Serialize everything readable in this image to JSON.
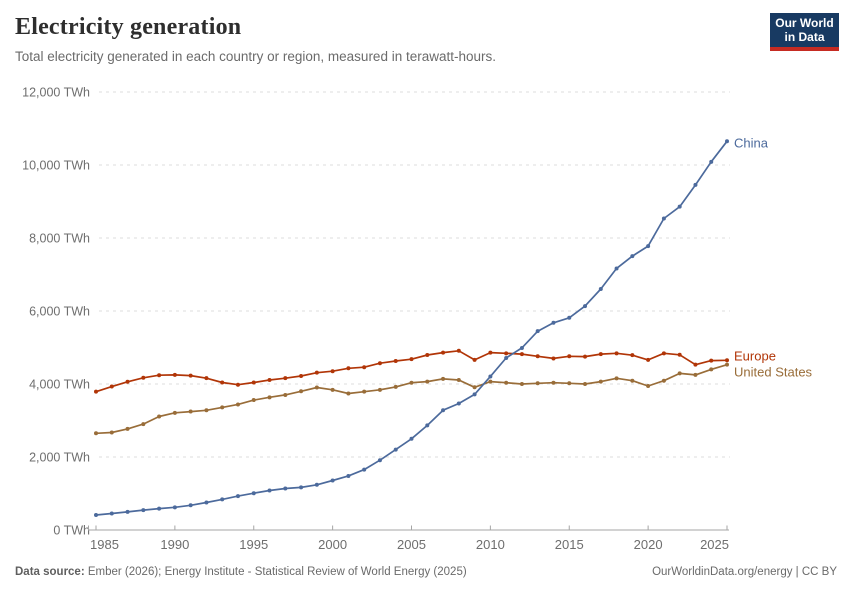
{
  "header": {
    "title": "Electricity generation",
    "subtitle": "Total electricity generated in each country or region, measured in terawatt-hours.",
    "logo": {
      "line1": "Our World",
      "line2": "in Data",
      "bg_color": "#183A62",
      "accent_color": "#C62B22"
    }
  },
  "chart_data": {
    "type": "line",
    "title": "Electricity generation",
    "subtitle": "Total electricity generated in each country or region, measured in terawatt-hours.",
    "unit": "TWh",
    "grid": "horizontal dashed",
    "legend_position": "line-end labels, right side",
    "xlim": [
      1985,
      2025
    ],
    "ylim": [
      0,
      12000
    ],
    "x": [
      1985,
      1986,
      1987,
      1988,
      1989,
      1990,
      1991,
      1992,
      1993,
      1994,
      1995,
      1996,
      1997,
      1998,
      1999,
      2000,
      2001,
      2002,
      2003,
      2004,
      2005,
      2006,
      2007,
      2008,
      2009,
      2010,
      2011,
      2012,
      2013,
      2014,
      2015,
      2016,
      2017,
      2018,
      2019,
      2020,
      2021,
      2022,
      2023,
      2024,
      2025
    ],
    "xticks": [
      {
        "value": 1985,
        "label": "1985"
      },
      {
        "value": 1990,
        "label": "1990"
      },
      {
        "value": 1995,
        "label": "1995"
      },
      {
        "value": 2000,
        "label": "2000"
      },
      {
        "value": 2005,
        "label": "2005"
      },
      {
        "value": 2010,
        "label": "2010"
      },
      {
        "value": 2015,
        "label": "2015"
      },
      {
        "value": 2020,
        "label": "2020"
      },
      {
        "value": 2025,
        "label": "2025"
      }
    ],
    "yticks": [
      {
        "value": 0,
        "label": "0 TWh"
      },
      {
        "value": 2000,
        "label": "2,000 TWh"
      },
      {
        "value": 4000,
        "label": "4,000 TWh"
      },
      {
        "value": 6000,
        "label": "6,000 TWh"
      },
      {
        "value": 8000,
        "label": "8,000 TWh"
      },
      {
        "value": 10000,
        "label": "10,000 TWh"
      },
      {
        "value": 12000,
        "label": "12,000 TWh"
      }
    ],
    "series": [
      {
        "name": "China",
        "color": "#4C6A9C",
        "label_dy": 2,
        "values": [
          411,
          451,
          497,
          545,
          585,
          621,
          678,
          754,
          839,
          928,
          1007,
          1081,
          1136,
          1167,
          1239,
          1356,
          1481,
          1654,
          1911,
          2203,
          2500,
          2866,
          3282,
          3466,
          3715,
          4207,
          4713,
          4988,
          5447,
          5678,
          5815,
          6133,
          6604,
          7166,
          7503,
          7779,
          8534,
          8858,
          9456,
          10087,
          10650
        ]
      },
      {
        "name": "Europe",
        "color": "#B13507",
        "label_dy": -4,
        "values": [
          3790,
          3930,
          4060,
          4170,
          4240,
          4250,
          4230,
          4160,
          4040,
          3980,
          4040,
          4110,
          4160,
          4220,
          4310,
          4350,
          4430,
          4460,
          4570,
          4630,
          4680,
          4795,
          4860,
          4910,
          4660,
          4860,
          4840,
          4820,
          4760,
          4700,
          4760,
          4750,
          4820,
          4840,
          4790,
          4660,
          4840,
          4800,
          4530,
          4640,
          4650
        ]
      },
      {
        "name": "United States",
        "color": "#996D39",
        "label_dy": 8,
        "values": [
          2650,
          2670,
          2770,
          2900,
          3110,
          3210,
          3245,
          3280,
          3360,
          3440,
          3560,
          3635,
          3700,
          3800,
          3905,
          3840,
          3740,
          3790,
          3840,
          3920,
          4035,
          4065,
          4140,
          4110,
          3910,
          4065,
          4035,
          4000,
          4020,
          4035,
          4020,
          4000,
          4065,
          4155,
          4090,
          3945,
          4090,
          4290,
          4250,
          4400,
          4530
        ]
      }
    ]
  },
  "footer": {
    "source_label": "Data source:",
    "source_text": " Ember (2026); Energy Institute - Statistical Review of World Energy (2025)",
    "license_text": "OurWorldinData.org/energy | CC BY"
  }
}
